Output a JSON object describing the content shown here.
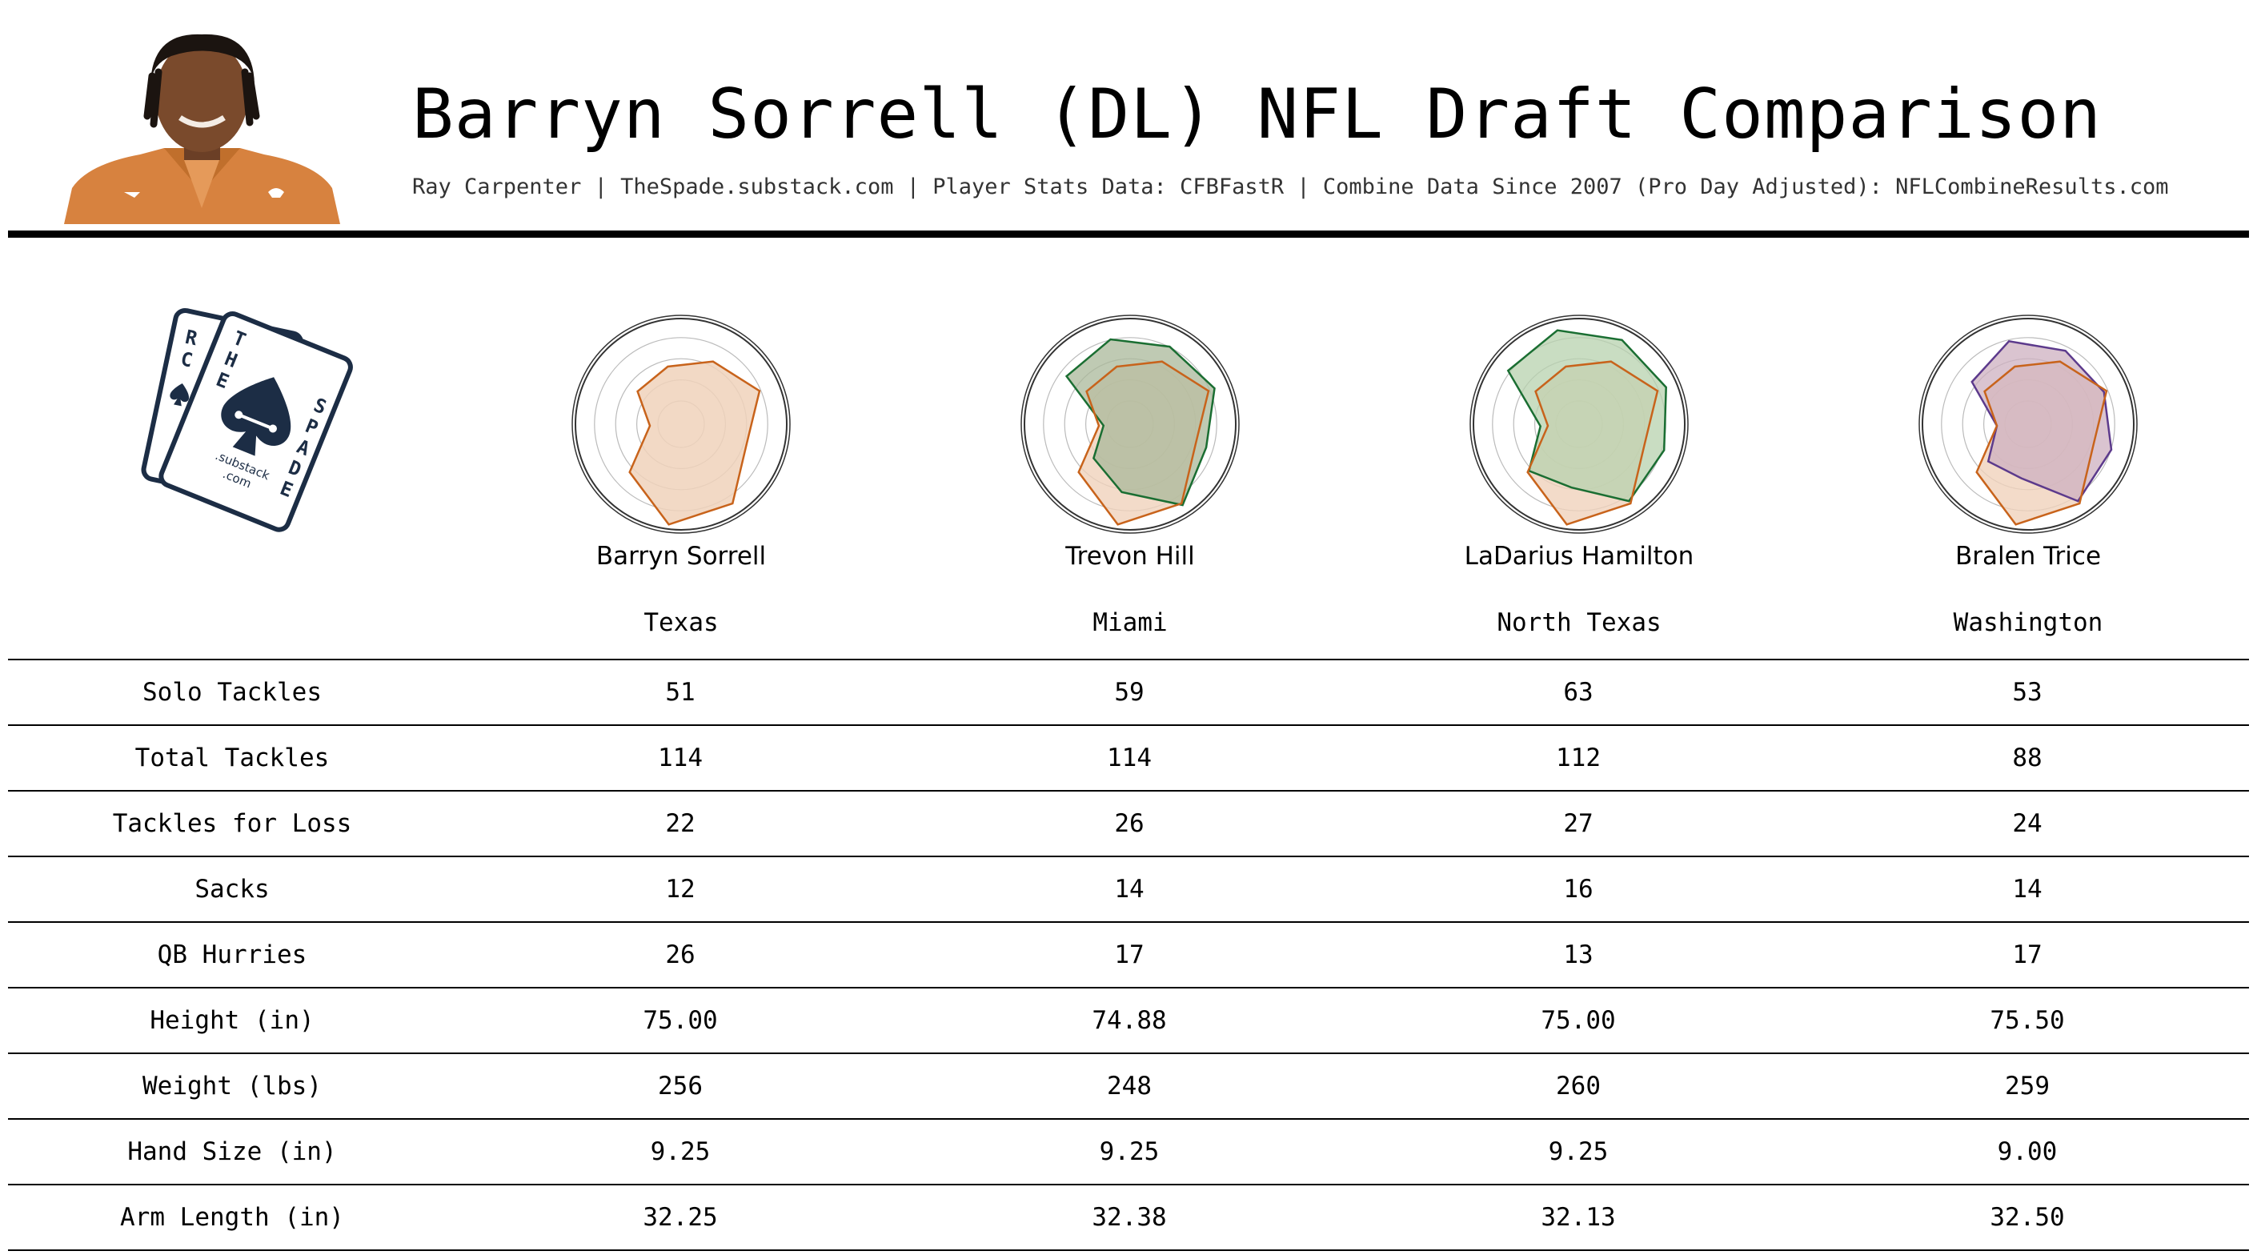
{
  "header": {
    "title": "Barryn Sorrell (DL) NFL Draft Comparison",
    "subtitle": "Ray Carpenter | TheSpade.substack.com | Player Stats Data: CFBFastR | Combine Data Since 2007 (Pro Day Adjusted): NFLCombineResults.com"
  },
  "logo": {
    "letters_card1": "RC",
    "letters_card2": "THE",
    "letters_spade": "SPADE",
    "sub1": ".substack",
    "sub2": ".com"
  },
  "colors": {
    "primary": "#c8631b",
    "primary_fill": "#f0d2bb",
    "comparisons": [
      "#1a6e32",
      "#1a6e32",
      "#5c3a8c"
    ],
    "comparison_fills": [
      "#a9b89a",
      "#b7d1ad",
      "#cdb0c0"
    ],
    "logo": "#1c2d45"
  },
  "chart_data": {
    "type": "radar",
    "axes": [
      "Solo Tackles",
      "Total Tackles",
      "Tackles for Loss",
      "Sacks",
      "QB Hurries",
      "Height (in)",
      "Weight (lbs)",
      "Hand Size (in)",
      "Arm Length (in)"
    ],
    "players": [
      {
        "name": "Barryn Sorrell",
        "school": "Texas",
        "stats": [
          "51",
          "114",
          "22",
          "12",
          "26",
          "75.00",
          "256",
          "9.25",
          "32.25"
        ],
        "radar": [
          0.62,
          0.78,
          0.6,
          0.88,
          0.95,
          0.62,
          0.2,
          0.45,
          0.5
        ],
        "compare_to": null
      },
      {
        "name": "Trevon Hill",
        "school": "Miami",
        "stats": [
          "59",
          "114",
          "26",
          "14",
          "17",
          "74.88",
          "248",
          "9.25",
          "32.38"
        ],
        "radar": [
          0.8,
          0.85,
          0.72,
          0.9,
          0.6,
          0.4,
          0.15,
          0.72,
          0.8
        ],
        "compare_to": 0
      },
      {
        "name": "LaDarius Hamilton",
        "school": "North Texas",
        "stats": [
          "63",
          "112",
          "27",
          "16",
          "13",
          "75.00",
          "260",
          "9.25",
          "32.13"
        ],
        "radar": [
          0.88,
          0.88,
          0.82,
          0.85,
          0.55,
          0.6,
          0.28,
          0.82,
          0.9
        ],
        "compare_to": 0
      },
      {
        "name": "Bralen Trice",
        "school": "Washington",
        "stats": [
          "53",
          "88",
          "24",
          "14",
          "17",
          "75.50",
          "259",
          "9.00",
          "32.50"
        ],
        "radar": [
          0.75,
          0.75,
          0.8,
          0.85,
          0.45,
          0.45,
          0.2,
          0.62,
          0.78
        ],
        "compare_to": 0
      }
    ]
  }
}
